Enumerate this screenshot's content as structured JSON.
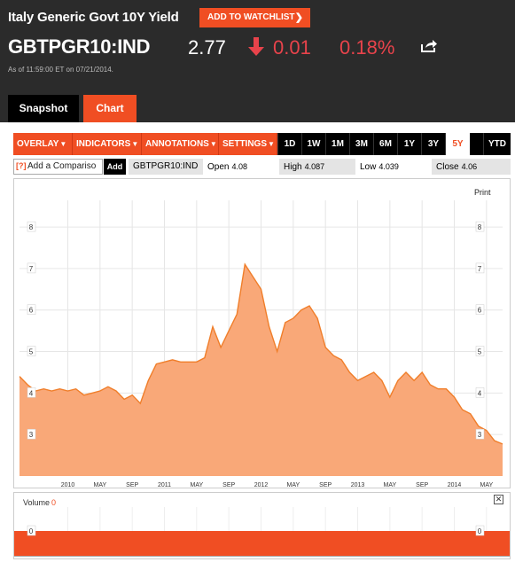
{
  "header": {
    "title": "Italy Generic Govt 10Y Yield",
    "watchlist_label": "ADD TO WATCHLIST",
    "ticker": "GBTPGR10:IND",
    "price": "2.77",
    "change": "0.01",
    "change_pct": "0.18%",
    "as_of": "As of 11:59:00 ET on 07/21/2014.",
    "direction_icon": "arrow-down-icon",
    "share_icon": "share-icon"
  },
  "tabs": [
    {
      "label": "Snapshot",
      "active": false
    },
    {
      "label": "Chart",
      "active": true
    }
  ],
  "toolbar": {
    "menus": [
      {
        "label": "OVERLAY"
      },
      {
        "label": "INDICATORS"
      },
      {
        "label": "ANNOTATIONS"
      },
      {
        "label": "SETTINGS"
      }
    ],
    "ranges": [
      "1D",
      "1W",
      "1M",
      "3M",
      "6M",
      "1Y",
      "3Y",
      "5Y",
      "YTD"
    ],
    "active_range": "5Y"
  },
  "infobar": {
    "compare_icon": "[?]",
    "compare_placeholder": "Add a Compariso",
    "add_label": "Add",
    "ticker": "GBTPGR10:IND",
    "open_label": "Open",
    "open_value": "4.08",
    "high_label": "High",
    "high_value": "4.087",
    "low_label": "Low",
    "low_value": "4.039",
    "close_label": "Close",
    "close_value": "4.06"
  },
  "print_label": "Print",
  "volume": {
    "label": "Volume",
    "value": "0",
    "axis_value": "0"
  },
  "colors": {
    "accent": "#f04e23",
    "fill": "#f9a878",
    "line": "#f07e2a",
    "header_bg": "#2b2b2b",
    "negative": "#e8434b"
  },
  "chart_data": {
    "type": "area",
    "x_tick_labels": [
      "2010",
      "MAY",
      "SEP",
      "2011",
      "MAY",
      "SEP",
      "2012",
      "MAY",
      "SEP",
      "2013",
      "MAY",
      "SEP",
      "2014",
      "MAY"
    ],
    "x_tick_dates": [
      "2010-01",
      "2010-05",
      "2010-09",
      "2011-01",
      "2011-05",
      "2011-09",
      "2012-01",
      "2012-05",
      "2012-09",
      "2013-01",
      "2013-05",
      "2013-09",
      "2014-01",
      "2014-05"
    ],
    "y_ticks": [
      3,
      4,
      5,
      6,
      7,
      8
    ],
    "ylim": [
      2.0,
      8.6
    ],
    "x_range": [
      "2009-07",
      "2014-07"
    ],
    "grid": true,
    "series": [
      {
        "x": [
          "2009-07",
          "2009-08",
          "2009-09",
          "2009-10",
          "2009-11",
          "2009-12",
          "2010-01",
          "2010-02",
          "2010-03",
          "2010-04",
          "2010-05",
          "2010-06",
          "2010-07",
          "2010-08",
          "2010-09",
          "2010-10",
          "2010-11",
          "2010-12",
          "2011-01",
          "2011-02",
          "2011-03",
          "2011-04",
          "2011-05",
          "2011-06",
          "2011-07",
          "2011-08",
          "2011-09",
          "2011-10",
          "2011-11",
          "2011-12",
          "2012-01",
          "2012-02",
          "2012-03",
          "2012-04",
          "2012-05",
          "2012-06",
          "2012-07",
          "2012-08",
          "2012-09",
          "2012-10",
          "2012-11",
          "2012-12",
          "2013-01",
          "2013-02",
          "2013-03",
          "2013-04",
          "2013-05",
          "2013-06",
          "2013-07",
          "2013-08",
          "2013-09",
          "2013-10",
          "2013-11",
          "2013-12",
          "2014-01",
          "2014-02",
          "2014-03",
          "2014-04",
          "2014-05",
          "2014-06",
          "2014-07"
        ],
        "y": [
          4.4,
          4.2,
          4.05,
          4.1,
          4.05,
          4.1,
          4.05,
          4.1,
          3.95,
          4.0,
          4.05,
          4.15,
          4.05,
          3.85,
          3.95,
          3.75,
          4.3,
          4.7,
          4.75,
          4.8,
          4.75,
          4.75,
          4.75,
          4.85,
          5.6,
          5.1,
          5.5,
          5.9,
          7.1,
          6.8,
          6.5,
          5.6,
          5.0,
          5.7,
          5.8,
          6.0,
          6.1,
          5.8,
          5.1,
          4.9,
          4.8,
          4.5,
          4.3,
          4.4,
          4.5,
          4.3,
          3.9,
          4.3,
          4.5,
          4.3,
          4.5,
          4.2,
          4.1,
          4.1,
          3.9,
          3.6,
          3.5,
          3.2,
          3.1,
          2.85,
          2.77
        ]
      }
    ]
  }
}
